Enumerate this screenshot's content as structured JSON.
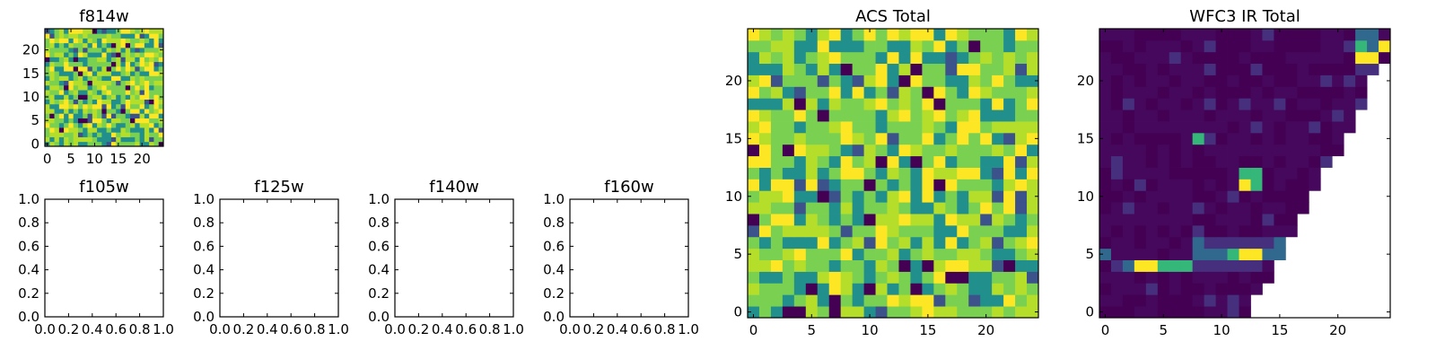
{
  "chart_data": [
    {
      "type": "heatmap",
      "id": "f814w",
      "title": "f814w",
      "grid": [
        25,
        25
      ],
      "pattern": "noise",
      "xticks": [
        "0",
        "5",
        "10",
        "15",
        "20"
      ],
      "yticks": [
        "0",
        "5",
        "10",
        "15",
        "20"
      ]
    },
    {
      "type": "heatmap",
      "id": "f105w",
      "title": "f105w",
      "empty": true,
      "xticks": [
        "0.0",
        "0.2",
        "0.4",
        "0.6",
        "0.8",
        "1.0"
      ],
      "yticks": [
        "0.0",
        "0.2",
        "0.4",
        "0.6",
        "0.8",
        "1.0"
      ]
    },
    {
      "type": "heatmap",
      "id": "f125w",
      "title": "f125w",
      "empty": true,
      "xticks": [
        "0.0",
        "0.2",
        "0.4",
        "0.6",
        "0.8",
        "1.0"
      ],
      "yticks": [
        "0.0",
        "0.2",
        "0.4",
        "0.6",
        "0.8",
        "1.0"
      ]
    },
    {
      "type": "heatmap",
      "id": "f140w",
      "title": "f140w",
      "empty": true,
      "xticks": [
        "0.0",
        "0.2",
        "0.4",
        "0.6",
        "0.8",
        "1.0"
      ],
      "yticks": [
        "0.0",
        "0.2",
        "0.4",
        "0.6",
        "0.8",
        "1.0"
      ]
    },
    {
      "type": "heatmap",
      "id": "f160w",
      "title": "f160w",
      "empty": true,
      "xticks": [
        "0.0",
        "0.2",
        "0.4",
        "0.6",
        "0.8",
        "1.0"
      ],
      "yticks": [
        "0.0",
        "0.2",
        "0.4",
        "0.6",
        "0.8",
        "1.0"
      ]
    },
    {
      "type": "heatmap",
      "id": "acs-total",
      "title": "ACS Total",
      "grid": [
        25,
        25
      ],
      "pattern": "noise",
      "xticks": [
        "0",
        "5",
        "10",
        "15",
        "20"
      ],
      "yticks": [
        "0",
        "5",
        "10",
        "15",
        "20"
      ]
    },
    {
      "type": "heatmap",
      "id": "wfc3-ir-total",
      "title": "WFC3 IR Total",
      "grid": [
        25,
        25
      ],
      "pattern": "wedge",
      "xticks": [
        "0",
        "5",
        "10",
        "15",
        "20"
      ],
      "yticks": [
        "0",
        "5",
        "10",
        "15",
        "20"
      ]
    }
  ],
  "colormap": [
    "#440154",
    "#3b528b",
    "#21908d",
    "#5dc863",
    "#fde725"
  ]
}
